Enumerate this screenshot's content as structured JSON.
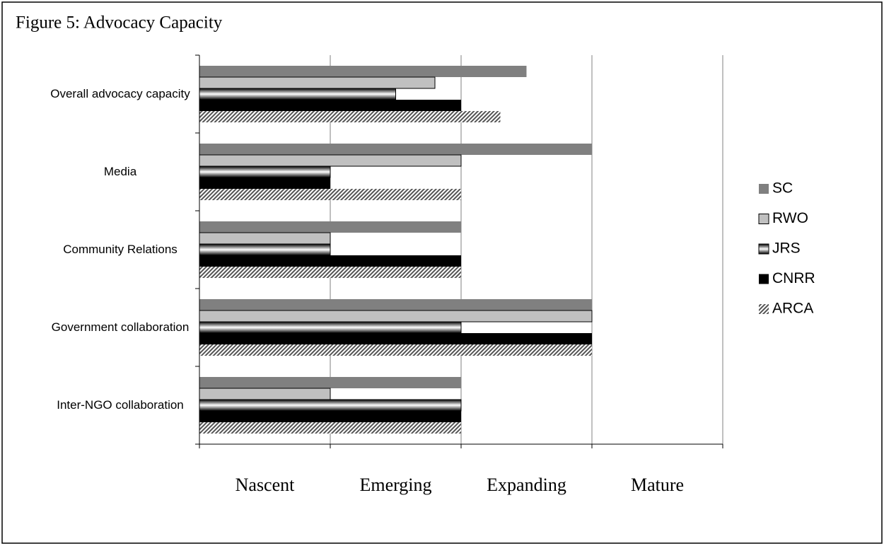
{
  "chart_data": {
    "type": "hbar",
    "title": "Figure 5: Advocacy Capacity",
    "categories": [
      "Overall advocacy capacity",
      "Media",
      "Community Relations",
      "Government collaboration",
      "Inter-NGO collaboration"
    ],
    "series": [
      {
        "name": "SC",
        "color": "#808080",
        "values": [
          2.5,
          3,
          2,
          3,
          2
        ]
      },
      {
        "name": "RWO",
        "color": "#c0c0c0",
        "values": [
          1.8,
          2,
          1,
          3,
          1
        ]
      },
      {
        "name": "JRS",
        "color": "#888888",
        "pattern": "gradient",
        "values": [
          1.5,
          1,
          1,
          2,
          2
        ]
      },
      {
        "name": "CNRR",
        "color": "#000000",
        "values": [
          2,
          1,
          2,
          3,
          2
        ]
      },
      {
        "name": "ARCA",
        "color": "#666666",
        "pattern": "hatch",
        "values": [
          2.3,
          2,
          2,
          3,
          2
        ]
      }
    ],
    "levels": [
      "Nascent",
      "Emerging",
      "Expanding",
      "Mature"
    ],
    "xlim": [
      0,
      4
    ],
    "xticks": [
      0,
      1,
      2,
      3,
      4
    ],
    "grid": true,
    "legend": "right"
  }
}
